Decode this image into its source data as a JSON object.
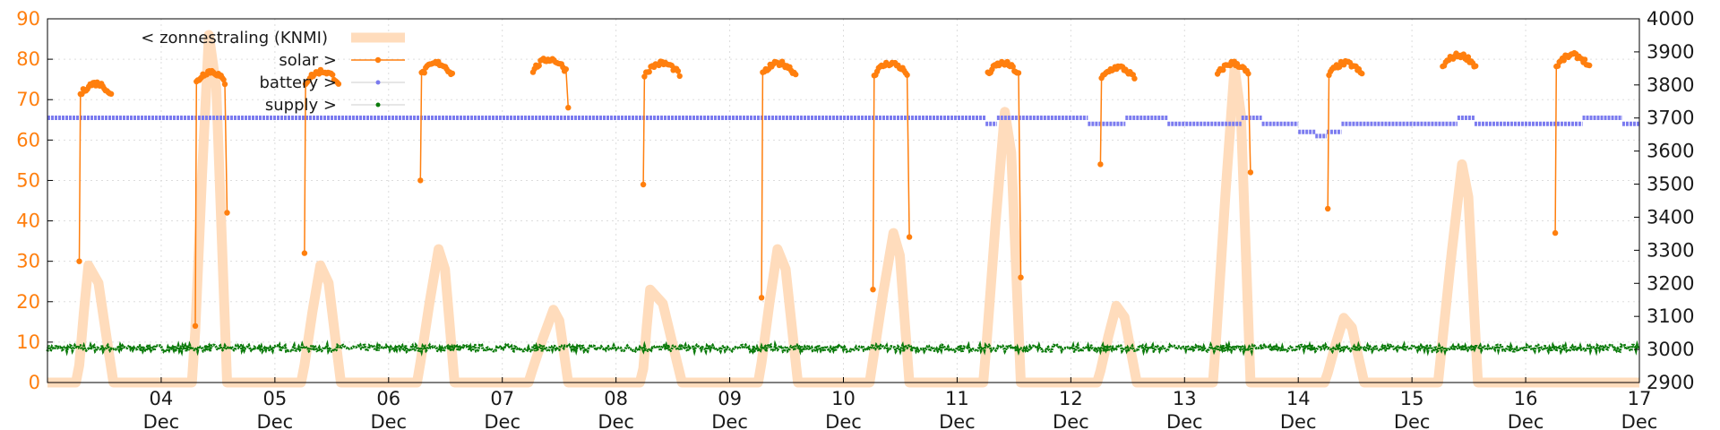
{
  "chart_data": {
    "type": "line",
    "grid": true,
    "legend_position": "top-left",
    "y_left": {
      "range": [
        0,
        90
      ],
      "ticks": [
        "0",
        "10",
        "20",
        "30",
        "40",
        "50",
        "60",
        "70",
        "80",
        "90"
      ]
    },
    "y_right": {
      "range": [
        2900,
        4000
      ],
      "ticks": [
        "2900",
        "3000",
        "3100",
        "3200",
        "3300",
        "3400",
        "3500",
        "3600",
        "3700",
        "3800",
        "3900",
        "4000"
      ]
    },
    "x": {
      "range_days": [
        3.0,
        17.0
      ],
      "ticks": [
        {
          "day": 4,
          "label": "04",
          "month": "Dec"
        },
        {
          "day": 5,
          "label": "05",
          "month": "Dec"
        },
        {
          "day": 6,
          "label": "06",
          "month": "Dec"
        },
        {
          "day": 7,
          "label": "07",
          "month": "Dec"
        },
        {
          "day": 8,
          "label": "08",
          "month": "Dec"
        },
        {
          "day": 9,
          "label": "09",
          "month": "Dec"
        },
        {
          "day": 10,
          "label": "10",
          "month": "Dec"
        },
        {
          "day": 11,
          "label": "11",
          "month": "Dec"
        },
        {
          "day": 12,
          "label": "12",
          "month": "Dec"
        },
        {
          "day": 13,
          "label": "13",
          "month": "Dec"
        },
        {
          "day": 14,
          "label": "14",
          "month": "Dec"
        },
        {
          "day": 15,
          "label": "15",
          "month": "Dec"
        },
        {
          "day": 16,
          "label": "16",
          "month": "Dec"
        },
        {
          "day": 17,
          "label": "17",
          "month": "Dec"
        }
      ]
    },
    "series": [
      {
        "name": "< zonnestraling (KNMI)",
        "axis": "left",
        "color": "#ffdcbc",
        "peaks": [
          {
            "start": 3.28,
            "peak": 3.36,
            "end": 3.58,
            "value": 29
          },
          {
            "start": 4.3,
            "peak": 4.42,
            "end": 4.58,
            "value": 86
          },
          {
            "start": 5.26,
            "peak": 5.4,
            "end": 5.58,
            "value": 29
          },
          {
            "start": 6.28,
            "peak": 6.44,
            "end": 6.58,
            "value": 33
          },
          {
            "start": 7.26,
            "peak": 7.45,
            "end": 7.58,
            "value": 18
          },
          {
            "start": 8.24,
            "peak": 8.3,
            "end": 8.58,
            "value": 23
          },
          {
            "start": 9.28,
            "peak": 9.42,
            "end": 9.6,
            "value": 33
          },
          {
            "start": 10.26,
            "peak": 10.44,
            "end": 10.58,
            "value": 37
          },
          {
            "start": 11.26,
            "peak": 11.42,
            "end": 11.56,
            "value": 67
          },
          {
            "start": 12.26,
            "peak": 12.4,
            "end": 12.58,
            "value": 19
          },
          {
            "start": 13.28,
            "peak": 13.44,
            "end": 13.58,
            "value": 78
          },
          {
            "start": 14.26,
            "peak": 14.4,
            "end": 14.58,
            "value": 16
          },
          {
            "start": 15.26,
            "peak": 15.44,
            "end": 15.58,
            "value": 54
          }
        ]
      },
      {
        "name": "solar >",
        "axis": "left",
        "color": "#ff7f0e",
        "days": [
          {
            "start": 3.28,
            "end": 3.58,
            "first": 30,
            "plateau": 74
          },
          {
            "start": 4.3,
            "end": 4.58,
            "first": 14,
            "plateau": 77,
            "last": 42
          },
          {
            "start": 5.26,
            "end": 5.58,
            "first": 32,
            "plateau": 77
          },
          {
            "start": 6.28,
            "end": 6.58,
            "first": 50,
            "plateau": 79
          },
          {
            "start": 7.26,
            "end": 7.58,
            "plateau": 80,
            "last": 68
          },
          {
            "start": 8.24,
            "end": 8.58,
            "first": 49,
            "plateau": 79
          },
          {
            "start": 9.28,
            "end": 9.6,
            "first": 21,
            "plateau": 79
          },
          {
            "start": 10.26,
            "end": 10.58,
            "first": 23,
            "plateau": 79,
            "last": 36
          },
          {
            "start": 11.26,
            "end": 11.56,
            "plateau": 79,
            "last": 26
          },
          {
            "start": 12.26,
            "end": 12.58,
            "first": 54,
            "plateau": 78
          },
          {
            "start": 13.28,
            "end": 13.58,
            "plateau": 79,
            "last": 52
          },
          {
            "start": 14.26,
            "end": 14.58,
            "first": 43,
            "plateau": 79
          },
          {
            "start": 15.26,
            "end": 15.58,
            "plateau": 81
          },
          {
            "start": 16.26,
            "end": 16.58,
            "first": 37,
            "plateau": 81
          }
        ]
      },
      {
        "name": "battery >",
        "axis": "left",
        "color": "#7b7bef",
        "segments": [
          {
            "from": 3.0,
            "to": 11.25,
            "value": 65.5
          },
          {
            "from": 11.25,
            "to": 11.35,
            "value": 64
          },
          {
            "from": 11.35,
            "to": 12.15,
            "value": 65.5
          },
          {
            "from": 12.15,
            "to": 12.48,
            "value": 64
          },
          {
            "from": 12.48,
            "to": 12.85,
            "value": 65.5
          },
          {
            "from": 12.85,
            "to": 13.5,
            "value": 64
          },
          {
            "from": 13.5,
            "to": 13.68,
            "value": 65.5
          },
          {
            "from": 13.68,
            "to": 14.0,
            "value": 64
          },
          {
            "from": 14.0,
            "to": 14.15,
            "value": 62
          },
          {
            "from": 14.15,
            "to": 14.25,
            "value": 61
          },
          {
            "from": 14.25,
            "to": 14.38,
            "value": 62
          },
          {
            "from": 14.38,
            "to": 15.4,
            "value": 64
          },
          {
            "from": 15.4,
            "to": 15.55,
            "value": 65.5
          },
          {
            "from": 15.55,
            "to": 16.5,
            "value": 64
          },
          {
            "from": 16.5,
            "to": 16.85,
            "value": 65.5
          },
          {
            "from": 16.85,
            "to": 17.0,
            "value": 64
          }
        ]
      },
      {
        "name": "supply >",
        "axis": "left",
        "color": "#0a7a0a",
        "level": 8.5
      }
    ]
  }
}
